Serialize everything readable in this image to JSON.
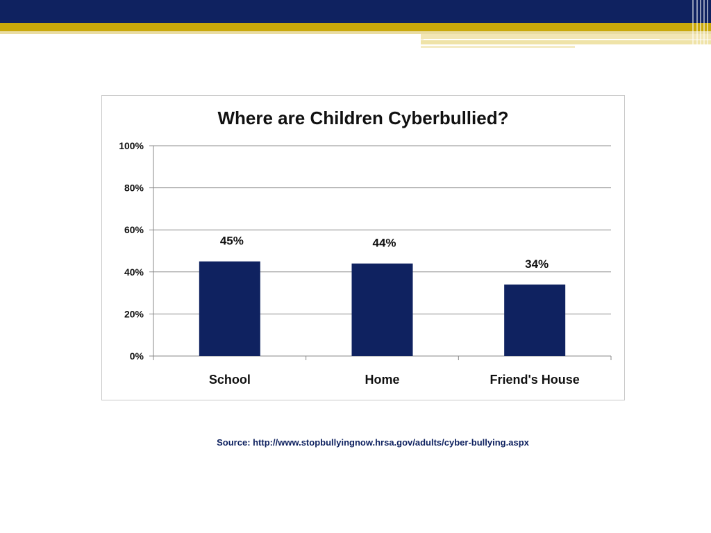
{
  "colors": {
    "header_navy": "#0f2260",
    "header_gold": "#c9a80a",
    "bar": "#0f2260",
    "gridline": "#888888",
    "source_text": "#0f2260"
  },
  "chart_data": {
    "type": "bar",
    "title": "Where are Children Cyberbullied?",
    "categories": [
      "School",
      "Home",
      "Friend's House"
    ],
    "values": [
      45,
      44,
      34
    ],
    "data_labels": [
      "45%",
      "44%",
      "34%"
    ],
    "y_ticks": [
      "0%",
      "20%",
      "40%",
      "60%",
      "80%",
      "100%"
    ],
    "ylim": [
      0,
      100
    ],
    "grid": true,
    "legend": "none"
  },
  "source": "Source: http://www.stopbullyingnow.hrsa.gov/adults/cyber-bullying.aspx"
}
